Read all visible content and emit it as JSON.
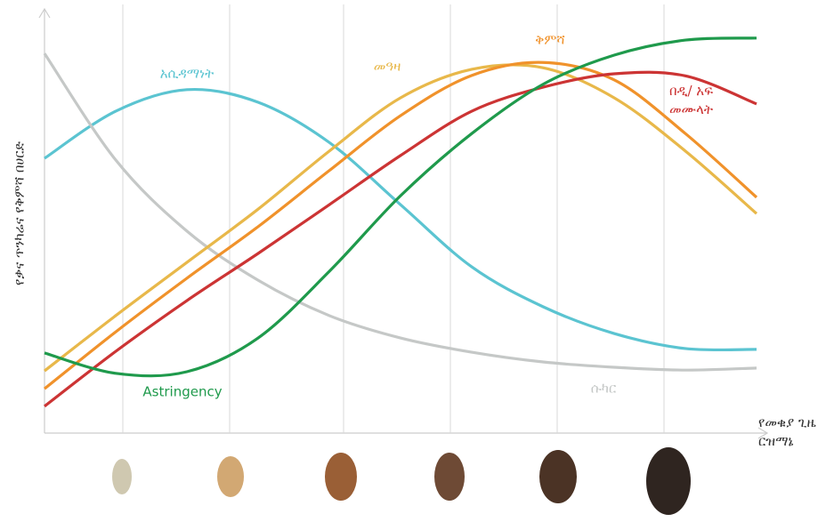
{
  "chart_data": {
    "type": "line",
    "x": [
      0,
      10,
      20,
      30,
      40,
      50,
      60,
      70,
      80,
      90,
      100
    ],
    "xlim": [
      0,
      100
    ],
    "ylim": [
      0,
      100
    ],
    "xticks": [
      11,
      26,
      42,
      57,
      72,
      87
    ],
    "grid": true,
    "xlabel": "የመቁያ ጊዜ ርዝማኔ",
    "ylabel": "የቃና ጥንካሬና የቅምሻ በሀርድ",
    "series": [
      {
        "name": "አሲዳማነት",
        "color": "#5bc4d1",
        "values": [
          67.6,
          79.2,
          84.5,
          81.4,
          71.5,
          56.2,
          40.9,
          31.1,
          24.5,
          20.8,
          20.6
        ]
      },
      {
        "name": "ሱካር",
        "color": "#c5c8c7",
        "values": [
          93.4,
          67.2,
          49.7,
          37.6,
          28.9,
          23.4,
          19.9,
          17.5,
          16.2,
          15.5,
          16.0
        ]
      },
      {
        "name": "መዓዛ",
        "color": "#e8b84a",
        "values": [
          15.3,
          28.9,
          42.0,
          55.1,
          69.4,
          82.5,
          89.5,
          89.9,
          82.5,
          69.4,
          54.0
        ]
      },
      {
        "name": "ቅምሻ",
        "color": "#f0922b",
        "values": [
          10.9,
          24.9,
          38.1,
          50.8,
          64.6,
          78.1,
          88.0,
          91.2,
          86.9,
          73.7,
          58.0
        ]
      },
      {
        "name": "በዲ/ አፍ መሙላት",
        "color": "#cc3434",
        "values": [
          6.6,
          20.1,
          32.6,
          44.2,
          56.2,
          68.3,
          79.2,
          85.1,
          88.4,
          87.9,
          81.0
        ]
      },
      {
        "name": "Astringency",
        "color": "#1f9a4c",
        "values": [
          19.7,
          14.7,
          15.1,
          23.4,
          39.8,
          58.4,
          73.7,
          85.8,
          93.0,
          96.7,
          97.2
        ]
      }
    ]
  }
}
